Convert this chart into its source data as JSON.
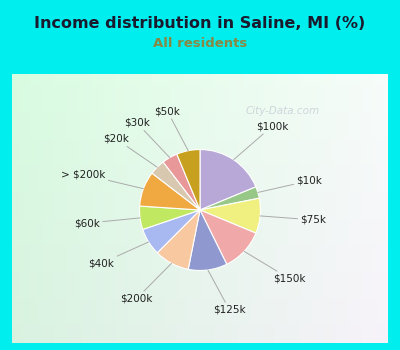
{
  "title": "Income distribution in Saline, MI (%)",
  "subtitle": "All residents",
  "title_color": "#1a1a2e",
  "subtitle_color": "#888844",
  "bg_cyan": "#00eeee",
  "bg_inner": "#e8f5ee",
  "labels": [
    "$100k",
    "$10k",
    "$75k",
    "$150k",
    "$125k",
    "$200k",
    "$40k",
    "$60k",
    "> $200k",
    "$20k",
    "$30k",
    "$50k"
  ],
  "values": [
    18,
    3,
    9,
    11,
    10,
    9,
    7,
    6,
    9,
    4,
    4,
    6
  ],
  "colors": [
    "#b8a8d8",
    "#98c888",
    "#f0f080",
    "#f0a8a8",
    "#9098d0",
    "#f8c8a0",
    "#a8b8f0",
    "#c0e860",
    "#f0a840",
    "#d8c8b0",
    "#e89898",
    "#c8a020"
  ],
  "label_fontsize": 7.5,
  "title_fontsize": 11.5,
  "subtitle_fontsize": 9.5,
  "watermark": "City-Data.com",
  "watermark_color": "#bbbbcc",
  "startangle": 90
}
